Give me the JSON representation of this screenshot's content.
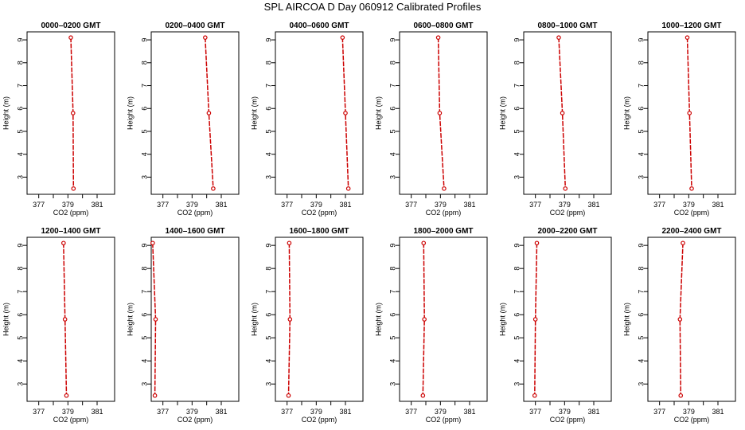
{
  "title": "SPL AIRCOA D  Day 060912  Calibrated Profiles",
  "colors": {
    "profile": "#cc0000",
    "axis": "#000000"
  },
  "chart_data": {
    "type": "line",
    "xlabel": "CO2 (ppm)",
    "ylabel": "Height (m)",
    "xlim": [
      376.2,
      382.2
    ],
    "ylim": [
      2.25,
      9.35
    ],
    "xticks": [
      377,
      378,
      379,
      380,
      381
    ],
    "xtick_labels": [
      "377",
      "",
      "379",
      "",
      "381"
    ],
    "yticks": [
      3,
      4,
      5,
      6,
      7,
      8,
      9
    ],
    "heights": [
      9.1,
      5.8,
      2.5
    ],
    "grid": false,
    "legend": "none",
    "panels": [
      {
        "title": "0000–0200 GMT",
        "co2": [
          379.2,
          379.35,
          379.38
        ]
      },
      {
        "title": "0200–0400 GMT",
        "co2": [
          379.9,
          380.15,
          380.45
        ]
      },
      {
        "title": "0400–0600 GMT",
        "co2": [
          380.8,
          381.0,
          381.2
        ]
      },
      {
        "title": "0600–0800 GMT",
        "co2": [
          378.85,
          378.95,
          379.25
        ]
      },
      {
        "title": "0800–1000 GMT",
        "co2": [
          378.6,
          378.85,
          379.05
        ]
      },
      {
        "title": "1000–1200 GMT",
        "co2": [
          378.9,
          379.05,
          379.2
        ]
      },
      {
        "title": "1200–1400 GMT",
        "co2": [
          378.7,
          378.8,
          378.9
        ]
      },
      {
        "title": "1400–1600 GMT",
        "co2": [
          376.3,
          376.5,
          376.45
        ]
      },
      {
        "title": "1600–1800 GMT",
        "co2": [
          377.15,
          377.2,
          377.1
        ]
      },
      {
        "title": "1800–2000 GMT",
        "co2": [
          377.85,
          377.9,
          377.8
        ]
      },
      {
        "title": "2000–2200 GMT",
        "co2": [
          377.1,
          377.0,
          376.95
        ]
      },
      {
        "title": "2200–2400 GMT",
        "co2": [
          378.6,
          378.4,
          378.45
        ]
      }
    ]
  }
}
